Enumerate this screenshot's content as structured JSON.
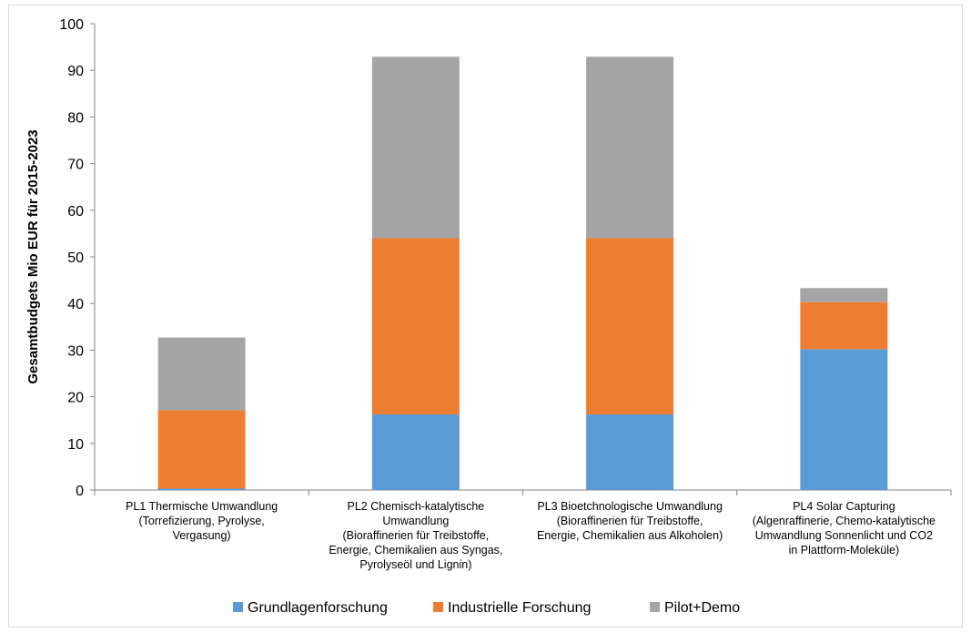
{
  "chart_data": {
    "type": "bar",
    "stacked": true,
    "title": "",
    "xlabel": "",
    "ylabel": "Gesamtbudgets Mio EUR für 2015-2023",
    "ylim": [
      0,
      100
    ],
    "yticks": [
      0,
      10,
      20,
      30,
      40,
      50,
      60,
      70,
      80,
      90,
      100
    ],
    "grid": false,
    "legend_position": "bottom",
    "categories": [
      [
        "PL1 Thermische Umwandlung",
        "(Torrefizierung, Pyrolyse,",
        "Vergasung)"
      ],
      [
        "PL2 Chemisch-katalytische",
        "Umwandlung",
        "(Bioraffinerien für Treibstoffe,",
        "Energie, Chemikalien aus Syngas,",
        "Pyrolyseöl und Lignin)"
      ],
      [
        "PL3 Bioetchnologische Umwandlung",
        "(Bioraffinerien für Treibstoffe,",
        "Energie, Chemikalien aus Alkoholen)"
      ],
      [
        "PL4 Solar Capturing",
        "(Algenraffinerie, Chemo-katalytische",
        "Umwandlung Sonnenlicht und CO2",
        "in Plattform-Moleküle)"
      ]
    ],
    "series": [
      {
        "name": "Grundlagenforschung",
        "color": "#5b9bd5",
        "values": [
          0.3,
          16.2,
          16.2,
          30.2
        ]
      },
      {
        "name": "Industrielle Forschung",
        "color": "#ed7d31",
        "values": [
          16.8,
          37.8,
          37.8,
          10.1
        ]
      },
      {
        "name": "Pilot+Demo",
        "color": "#a5a5a5",
        "values": [
          15.6,
          38.9,
          38.9,
          3.0
        ]
      }
    ]
  }
}
